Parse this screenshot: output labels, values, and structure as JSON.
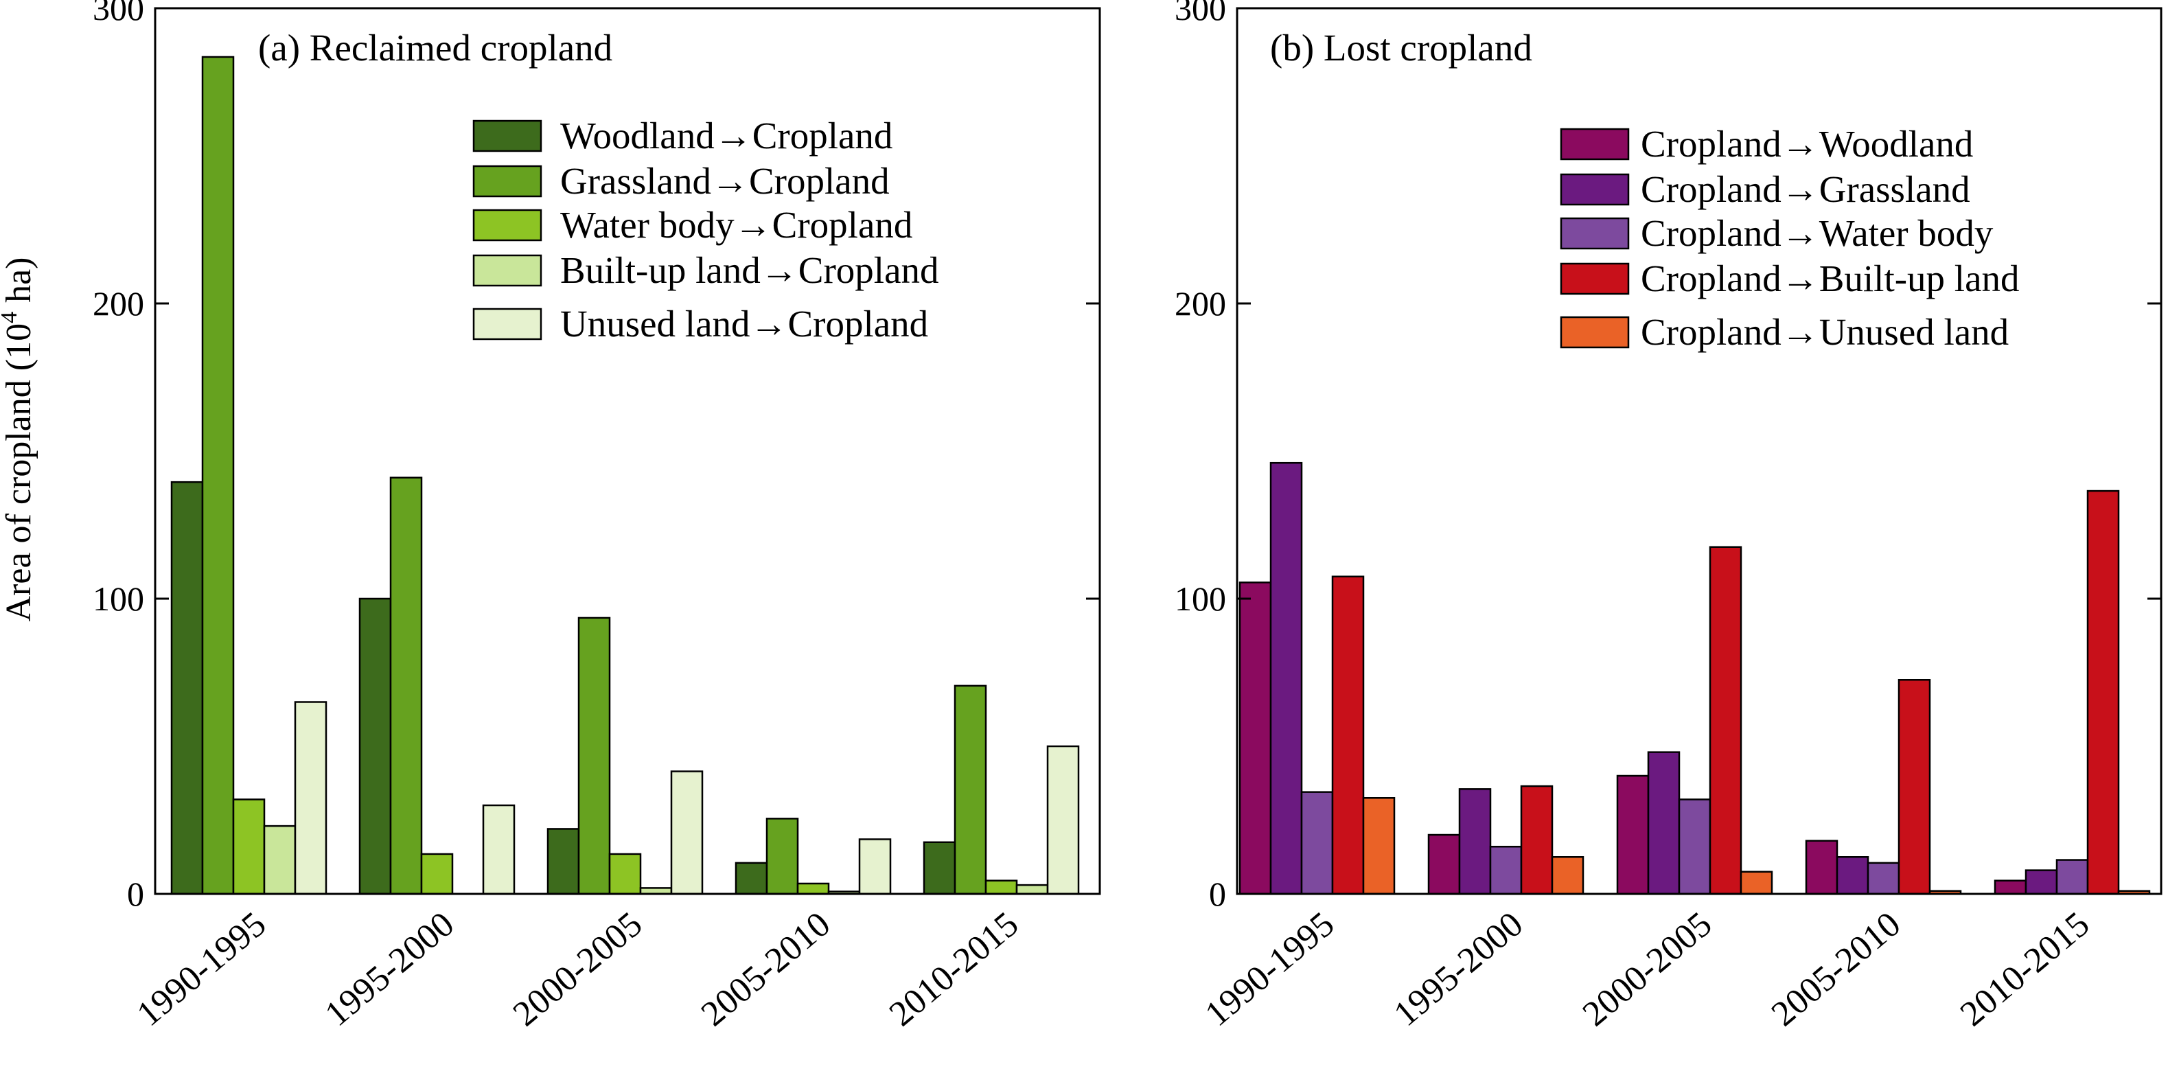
{
  "chart_data": [
    {
      "type": "bar",
      "title": "(a) Reclaimed cropland",
      "xlabel": "",
      "ylabel": "Area of cropland (10",
      "ylabel_sup": "4",
      "ylabel_suffix": " ha)",
      "ylim": [
        0,
        300
      ],
      "yticks": [
        "0",
        "100",
        "200",
        "300"
      ],
      "legend_position": "top-right",
      "categories": [
        "1990-1995",
        "1995-2000",
        "2000-2005",
        "2005-2010",
        "2010-2015"
      ],
      "series": [
        {
          "name": "Woodland→Cropland",
          "color": "#3d6b1c",
          "values": [
            139.5,
            100.0,
            22.0,
            10.5,
            17.5
          ]
        },
        {
          "name": "Grassland→Cropland",
          "color": "#66a21f",
          "values": [
            283.5,
            141.0,
            93.5,
            25.5,
            70.5
          ]
        },
        {
          "name": "Water body→Cropland",
          "color": "#8dc424",
          "values": [
            32.0,
            13.5,
            13.5,
            3.5,
            4.5
          ]
        },
        {
          "name": "Built-up land→Cropland",
          "color": "#c9e69a",
          "values": [
            23.0,
            0,
            2.0,
            0.8,
            3.0
          ]
        },
        {
          "name": "Unused land→Cropland",
          "color": "#e6f2cf",
          "values": [
            65.0,
            30.0,
            41.5,
            18.5,
            50.0
          ]
        }
      ]
    },
    {
      "type": "bar",
      "title": "(b) Lost cropland",
      "xlabel": "",
      "ylabel": "",
      "ylim": [
        0,
        300
      ],
      "yticks": [
        "0",
        "100",
        "200",
        "300"
      ],
      "legend_position": "top-right",
      "categories": [
        "1990-1995",
        "1995-2000",
        "2000-2005",
        "2005-2010",
        "2010-2015"
      ],
      "series": [
        {
          "name": "Cropland→Woodland",
          "color": "#8b0a5f",
          "values": [
            105.5,
            20.0,
            40.0,
            18.0,
            4.5
          ]
        },
        {
          "name": "Cropland→Grassland",
          "color": "#6b1a80",
          "values": [
            146.0,
            35.5,
            48.0,
            12.5,
            8.0
          ]
        },
        {
          "name": "Cropland→Water body",
          "color": "#7d4a9e",
          "values": [
            34.5,
            16.0,
            32.0,
            10.5,
            11.5
          ]
        },
        {
          "name": "Cropland→Built-up land",
          "color": "#c8101a",
          "values": [
            107.5,
            36.5,
            117.5,
            72.5,
            136.5
          ]
        },
        {
          "name": "Cropland→Unused land",
          "color": "#ea6227",
          "values": [
            32.5,
            12.5,
            7.5,
            1.0,
            1.0
          ]
        }
      ]
    }
  ]
}
